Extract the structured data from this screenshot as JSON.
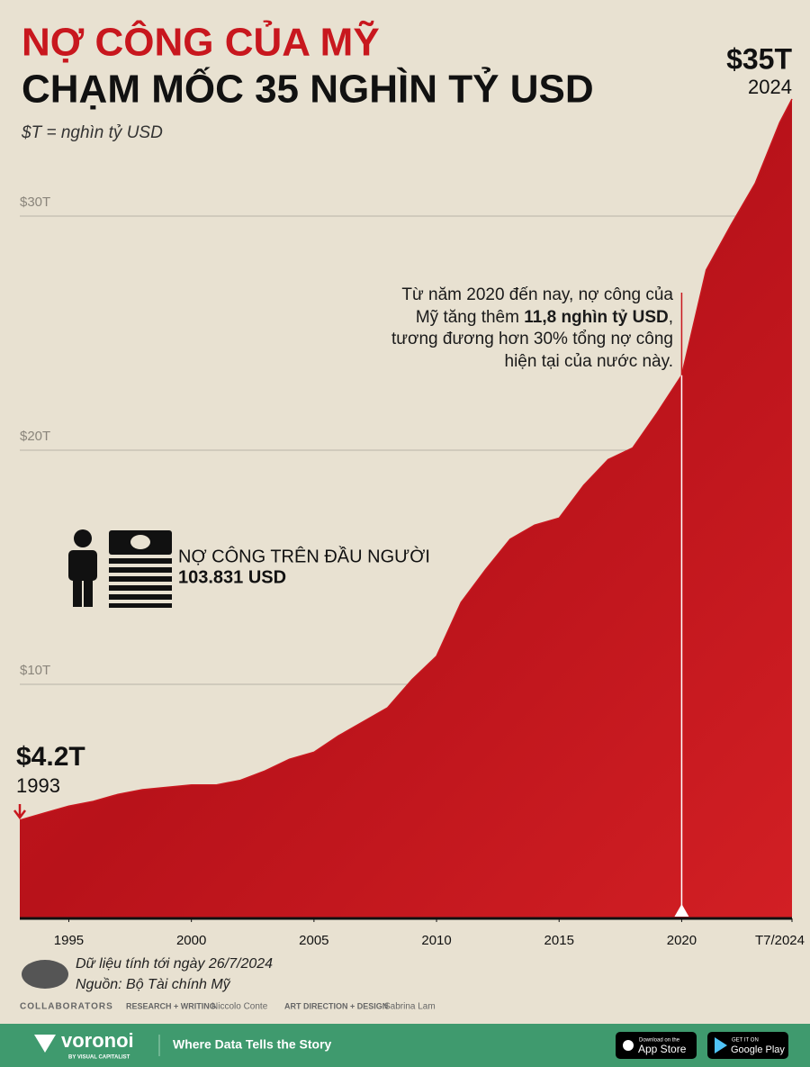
{
  "title_line1": "NỢ CÔNG CỦA MỸ",
  "title_line2": "CHẠM MỐC 35 NGHÌN TỶ USD",
  "subtitle": "$T = nghìn tỷ USD",
  "chart_data": {
    "type": "area",
    "x": [
      1993,
      1994,
      1995,
      1996,
      1997,
      1998,
      1999,
      2000,
      2001,
      2002,
      2003,
      2004,
      2005,
      2006,
      2007,
      2008,
      2009,
      2010,
      2011,
      2012,
      2013,
      2014,
      2015,
      2016,
      2017,
      2018,
      2019,
      2020,
      2021,
      2022,
      2023,
      2024,
      2024.5
    ],
    "values": [
      4.2,
      4.5,
      4.8,
      5.0,
      5.3,
      5.5,
      5.6,
      5.7,
      5.7,
      5.9,
      6.3,
      6.8,
      7.1,
      7.8,
      8.4,
      9.0,
      10.2,
      11.2,
      13.5,
      14.9,
      16.2,
      16.8,
      17.1,
      18.5,
      19.6,
      20.1,
      21.6,
      23.2,
      27.7,
      29.6,
      31.4,
      34.0,
      35.0
    ],
    "color": "#c8171e",
    "xlim": [
      1993,
      2024.5
    ],
    "ylim": [
      0,
      35
    ],
    "xticks": [
      1995,
      2000,
      2005,
      2010,
      2015,
      2020,
      {
        "value": 2024.5,
        "label": "T7/2024"
      }
    ],
    "yticks": [
      {
        "value": 10,
        "label": "$10T"
      },
      {
        "value": 20,
        "label": "$20T"
      },
      {
        "value": 30,
        "label": "$30T"
      }
    ],
    "grid": true,
    "start_label": {
      "value": "$4.2T",
      "year": "1993"
    },
    "end_label": {
      "value": "$35T",
      "year": "2024"
    },
    "annotation": {
      "before": "Từ năm 2020 đến nay, nợ công của Mỹ tăng thêm ",
      "bold": "11,8 nghìn tỷ USD",
      "after": ", tương đương hơn 30% tổng nợ công hiện tại của nước này."
    },
    "per_capita": {
      "label": "NỢ CÔNG TRÊN ĐẦU NGƯỜI",
      "value": "103.831 USD"
    }
  },
  "notes": [
    "Dữ liệu tính tới ngày 26/7/2024",
    "Nguồn: Bộ Tài chính Mỹ"
  ],
  "credits": {
    "label": "COLLABORATORS",
    "research_role": "RESEARCH + WRITING",
    "research_name": "Niccolo Conte",
    "design_role": "ART DIRECTION + DESIGN",
    "design_name": "Sabrina Lam"
  },
  "footer": {
    "brand": "voronoi",
    "brand_sub": "BY VISUAL CAPITALIST",
    "tagline": "Where Data Tells the Story",
    "app_store_top": "Download on the",
    "app_store": "App Store",
    "google_play_top": "GET IT ON",
    "google_play": "Google Play"
  }
}
